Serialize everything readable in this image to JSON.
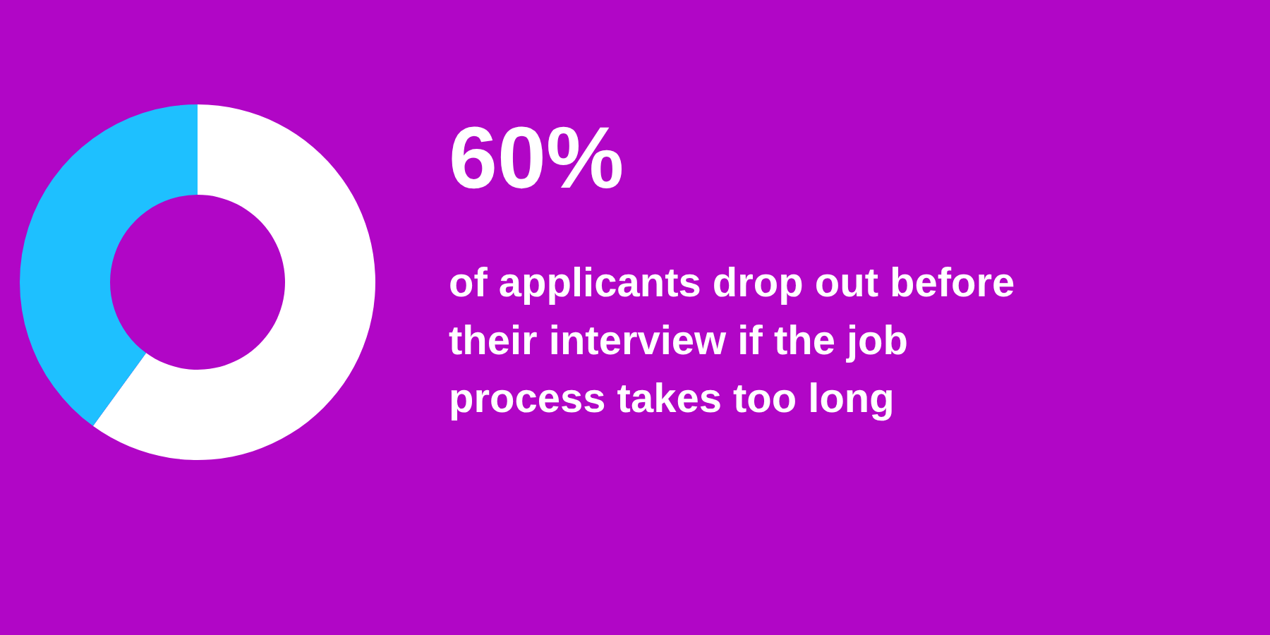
{
  "chart_data": {
    "type": "donut",
    "title": "60%",
    "subtitle": "of applicants drop out before their interview if the job process takes too long",
    "categories": [
      null,
      null
    ],
    "values": [
      60,
      40
    ],
    "colors": [
      "#ffffff",
      "#1ec0ff"
    ]
  }
}
